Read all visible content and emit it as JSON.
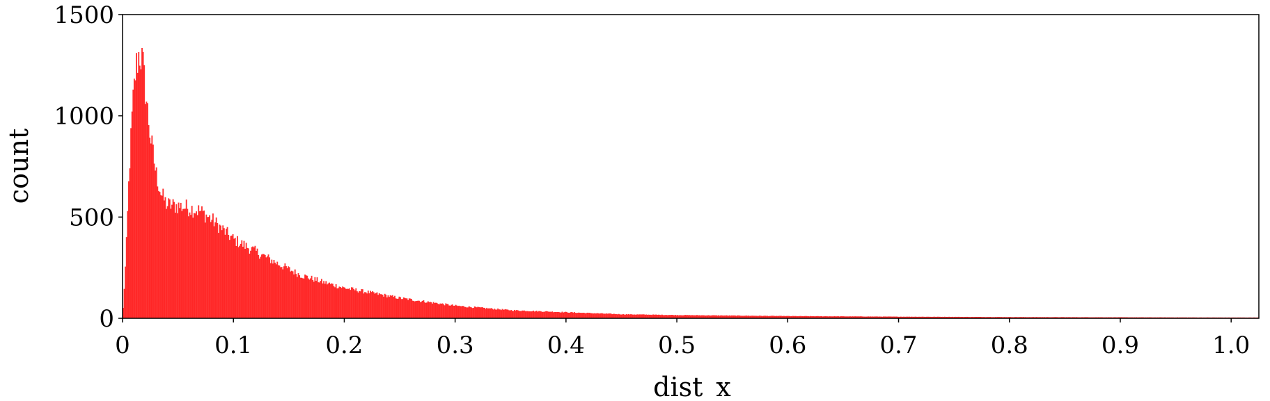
{
  "chart_data": {
    "type": "bar",
    "title": "",
    "xlabel": "dist_x",
    "ylabel": "count",
    "xlim": [
      0.0,
      1.025
    ],
    "ylim": [
      0,
      1500
    ],
    "bin_width": 0.001,
    "xticks": [
      0.0,
      0.1,
      0.2,
      0.3,
      0.4,
      0.5,
      0.6,
      0.7,
      0.8,
      0.9,
      1.0
    ],
    "xtick_labels": [
      "0",
      "0.1",
      "0.2",
      "0.3",
      "0.4",
      "0.5",
      "0.6",
      "0.7",
      "0.8",
      "0.9",
      "1.0"
    ],
    "yticks": [
      0,
      500,
      1000,
      1500
    ],
    "ytick_labels": [
      "0",
      "500",
      "1000",
      "1500"
    ],
    "grid": false,
    "bar_color": "#ff0000",
    "bar_opacity": 0.8,
    "profile_x": [
      0.0,
      0.003,
      0.006,
      0.009,
      0.012,
      0.015,
      0.018,
      0.021,
      0.025,
      0.03,
      0.035,
      0.04,
      0.05,
      0.06,
      0.07,
      0.08,
      0.09,
      0.1,
      0.12,
      0.14,
      0.16,
      0.18,
      0.2,
      0.25,
      0.3,
      0.35,
      0.4,
      0.45,
      0.5,
      0.6,
      0.7,
      0.8,
      0.9,
      1.0,
      1.025
    ],
    "profile_y": [
      0,
      300,
      730,
      1040,
      1240,
      1310,
      1270,
      1100,
      900,
      720,
      610,
      560,
      555,
      545,
      530,
      490,
      440,
      390,
      330,
      270,
      215,
      180,
      150,
      100,
      62,
      40,
      30,
      20,
      16,
      11,
      8,
      6,
      5,
      4,
      4
    ]
  }
}
